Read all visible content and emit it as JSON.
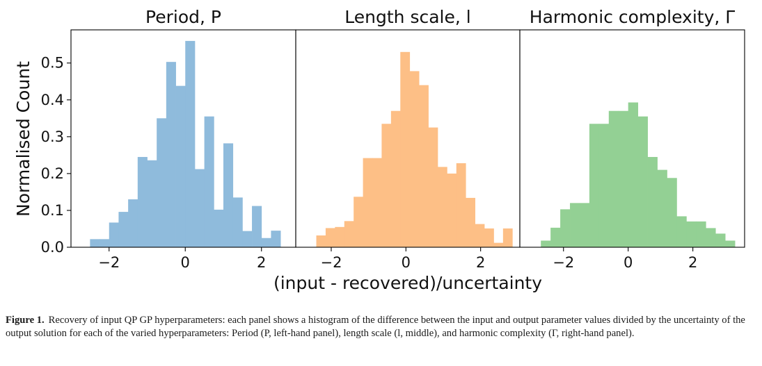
{
  "chart_data": [
    {
      "type": "bar",
      "title": "Period, P",
      "color": "#8fbbdc",
      "bin_edges": [
        -2.5,
        -2.25,
        -2.0,
        -1.75,
        -1.5,
        -1.25,
        -1.0,
        -0.75,
        -0.5,
        -0.25,
        0.0,
        0.25,
        0.5,
        0.75,
        1.0,
        1.25,
        1.5,
        1.75,
        2.0,
        2.25,
        2.5
      ],
      "values": [
        0.022,
        0.022,
        0.067,
        0.096,
        0.13,
        0.245,
        0.236,
        0.35,
        0.503,
        0.438,
        0.56,
        0.212,
        0.355,
        0.102,
        0.282,
        0.135,
        0.044,
        0.112,
        0.025,
        0.045
      ],
      "xticks": [
        -2,
        0,
        2
      ],
      "xlim": [
        -3.0,
        2.9
      ],
      "ylim": [
        0,
        0.59
      ],
      "yticks": [
        0.0,
        0.1,
        0.2,
        0.3,
        0.4,
        0.5
      ]
    },
    {
      "type": "bar",
      "title": "Length scale, l",
      "color": "#fdbf86",
      "bin_edges": [
        -2.4,
        -2.15,
        -1.9,
        -1.65,
        -1.4,
        -1.15,
        -0.9,
        -0.65,
        -0.4,
        -0.15,
        0.1,
        0.35,
        0.6,
        0.85,
        1.1,
        1.35,
        1.6,
        1.85,
        2.1,
        2.35,
        2.6,
        2.85
      ],
      "values": [
        0.032,
        0.052,
        0.055,
        0.071,
        0.137,
        0.242,
        0.242,
        0.335,
        0.37,
        0.53,
        0.478,
        0.44,
        0.325,
        0.218,
        0.2,
        0.228,
        0.134,
        0.063,
        0.051,
        0.012,
        0.051
      ],
      "xticks": [
        -2,
        0,
        2
      ],
      "xlim": [
        -2.95,
        3.05
      ],
      "ylim": [
        0,
        0.59
      ],
      "yticks": [
        0.0,
        0.1,
        0.2,
        0.3,
        0.4,
        0.5
      ]
    },
    {
      "type": "bar",
      "title": "Harmonic complexity, Γ",
      "color": "#93d094",
      "bin_edges": [
        -2.7,
        -2.4,
        -2.1,
        -1.8,
        -1.5,
        -1.2,
        -0.9,
        -0.6,
        -0.3,
        0.0,
        0.3,
        0.6,
        0.9,
        1.2,
        1.5,
        1.8,
        2.1,
        2.4,
        2.7,
        3.0,
        3.3
      ],
      "values": [
        0.018,
        0.053,
        0.103,
        0.12,
        0.12,
        0.335,
        0.335,
        0.37,
        0.37,
        0.393,
        0.355,
        0.245,
        0.21,
        0.188,
        0.084,
        0.07,
        0.07,
        0.052,
        0.037,
        0.018
      ],
      "xticks": [
        -2,
        0,
        2
      ],
      "xlim": [
        -3.35,
        3.6
      ],
      "ylim": [
        0,
        0.59
      ],
      "yticks": [
        0.0,
        0.1,
        0.2,
        0.3,
        0.4,
        0.5
      ]
    }
  ],
  "ylabel": "Normalised Count",
  "xlabel": "(input - recovered)/uncertainty",
  "caption": {
    "label": "Figure 1.",
    "text": "Recovery of input QP GP hyperparameters: each panel shows a histogram of the difference between the input and output parameter values divided by the uncertainty of the output solution for each of the varied hyperparameters: Period (P, left-hand panel), length scale (l, middle), and harmonic complexity (Γ, right-hand panel)."
  }
}
